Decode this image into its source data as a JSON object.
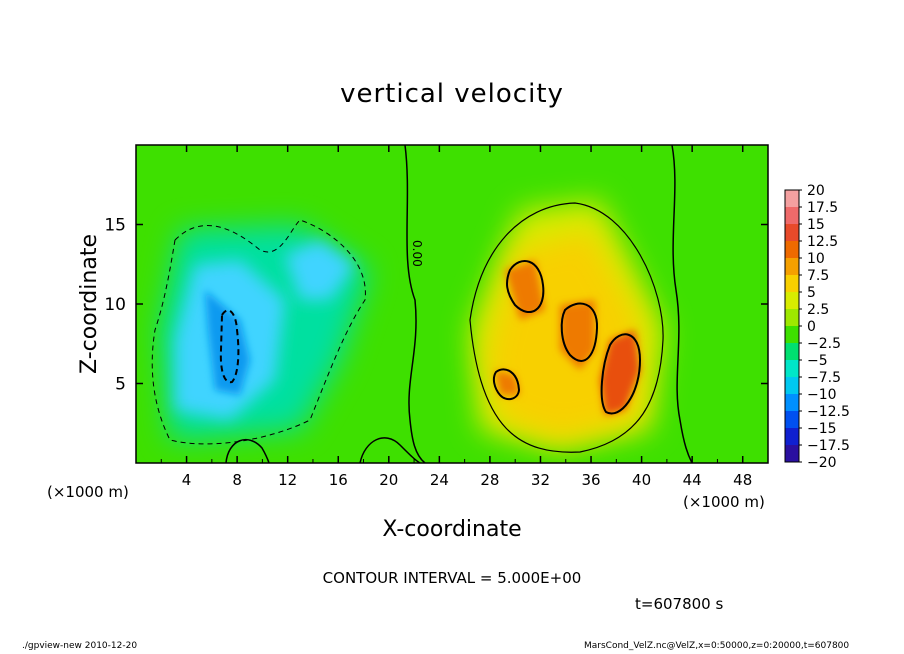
{
  "chart_data": {
    "type": "heatmap",
    "title": "vertical velocity",
    "xlabel": "X-coordinate",
    "ylabel": "Z-coordinate",
    "x_unit": "(×1000 m)",
    "x_unit_left": "(×1000 m)",
    "xlim": [
      0,
      50
    ],
    "ylim": [
      0,
      20
    ],
    "x_ticks": [
      4,
      8,
      12,
      16,
      20,
      24,
      28,
      32,
      36,
      40,
      44,
      48
    ],
    "y_ticks": [
      5,
      10,
      15
    ],
    "contour_label": "0.00",
    "colorbar": {
      "levels": [
        20,
        17.5,
        15,
        12.5,
        10,
        7.5,
        5,
        2.5,
        0,
        -2.5,
        -5,
        -7.5,
        -10,
        -12.5,
        -15,
        -17.5,
        -20
      ],
      "colors": [
        "#f4a0a0",
        "#ef6a6a",
        "#e84a2a",
        "#ee6a00",
        "#f5a000",
        "#f8d000",
        "#d8ec00",
        "#9ee800",
        "#3ee000",
        "#00e070",
        "#00e6c8",
        "#00c8f0",
        "#0090ff",
        "#0050f0",
        "#1020d0",
        "#2a10a0",
        "#5a10b0"
      ]
    },
    "features": [
      {
        "name": "downdraft-region",
        "sign": "negative",
        "x_center": 7,
        "z_center": 8,
        "min_value": -10
      },
      {
        "name": "updraft-region",
        "sign": "positive",
        "x_center": 34,
        "z_center": 8,
        "max_value": 15
      }
    ]
  },
  "annotations": {
    "contour_interval": "CONTOUR INTERVAL = 5.000E+00",
    "time": "t=607800 s",
    "footer_left": "./gpview-new  2010-12-20",
    "footer_right": "MarsCond_VelZ.nc@VelZ,x=0:50000,z=0:20000,t=607800"
  }
}
